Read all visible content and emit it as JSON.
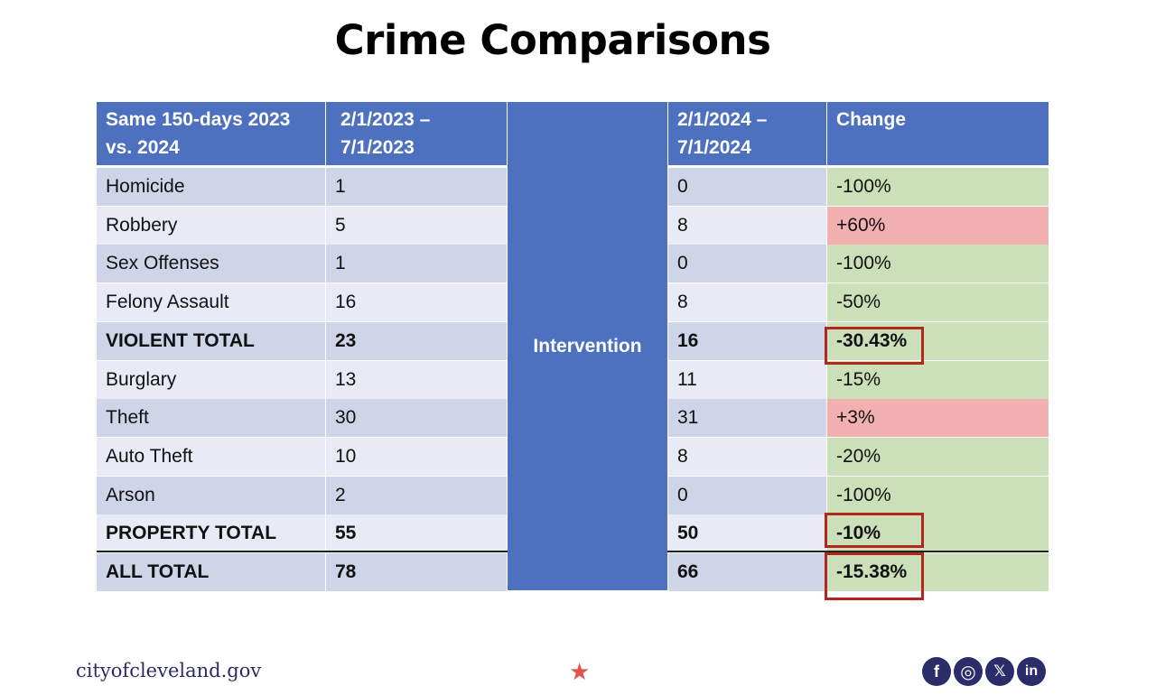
{
  "title": "Crime Comparisons",
  "table": {
    "headers": {
      "category": "Same 150-days 2023 vs. 2024",
      "period_2023": "2/1/2023 – 7/1/2023",
      "intervention": "",
      "period_2024": "2/1/2024 – 7/1/2024",
      "change": "Change"
    },
    "intervention_label": "Intervention",
    "rows": [
      {
        "category": "Homicide",
        "y2023": "1",
        "y2024": "0",
        "change": "-100%",
        "status": "decrease"
      },
      {
        "category": "Robbery",
        "y2023": "5",
        "y2024": "8",
        "change": "+60%",
        "status": "increase"
      },
      {
        "category": "Sex Offenses",
        "y2023": "1",
        "y2024": "0",
        "change": "-100%",
        "status": "decrease"
      },
      {
        "category": "Felony Assault",
        "y2023": "16",
        "y2024": "8",
        "change": "-50%",
        "status": "decrease"
      },
      {
        "category": "VIOLENT TOTAL",
        "y2023": "23",
        "y2024": "16",
        "change": "-30.43%",
        "status": "decrease",
        "total": true,
        "highlighted": true
      },
      {
        "category": "Burglary",
        "y2023": "13",
        "y2024": "11",
        "change": "-15%",
        "status": "decrease"
      },
      {
        "category": "Theft",
        "y2023": "30",
        "y2024": "31",
        "change": "+3%",
        "status": "increase"
      },
      {
        "category": "Auto Theft",
        "y2023": "10",
        "y2024": "8",
        "change": "-20%",
        "status": "decrease"
      },
      {
        "category": "Arson",
        "y2023": "2",
        "y2024": "0",
        "change": "-100%",
        "status": "decrease"
      },
      {
        "category": "PROPERTY TOTAL",
        "y2023": "55",
        "y2024": "50",
        "change": "-10%",
        "status": "decrease",
        "total": true,
        "highlighted": true
      },
      {
        "category": "ALL TOTAL",
        "y2023": "78",
        "y2024": "66",
        "change": "-15.38%",
        "status": "decrease",
        "total": true,
        "highlighted": true
      }
    ]
  },
  "colors": {
    "header_blue": "#4e71bf",
    "row_dark": "#cfd5e8",
    "row_light": "#e8ebf5",
    "decrease_green": "#cbdfb8",
    "increase_red": "#f2b0b0",
    "highlight_border": "#b3261e",
    "footer_navy": "#2a2d63",
    "star_red": "#e0544a"
  },
  "footer": {
    "url": "cityofcleveland.gov",
    "star": "★",
    "social": [
      {
        "name": "facebook",
        "glyph": "f"
      },
      {
        "name": "instagram",
        "glyph": "◎"
      },
      {
        "name": "x",
        "glyph": "𝕏"
      },
      {
        "name": "linkedin",
        "glyph": "in"
      }
    ]
  }
}
